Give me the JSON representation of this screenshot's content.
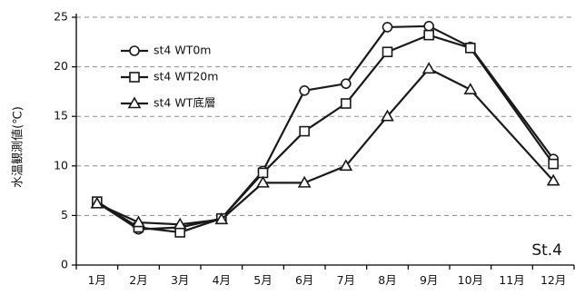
{
  "chart_data": {
    "type": "line",
    "title": "",
    "xlabel": "",
    "ylabel": "水温観測値(℃)",
    "annotation": "St.4",
    "categories": [
      "1月",
      "2月",
      "3月",
      "4月",
      "5月",
      "6月",
      "7月",
      "8月",
      "9月",
      "10月",
      "11月",
      "12月"
    ],
    "ylim": [
      0,
      25
    ],
    "yticks": [
      0,
      5,
      10,
      15,
      20,
      25
    ],
    "grid": "horizontal dashed",
    "legend_position": "top-left",
    "series": [
      {
        "name": "st4 WT0m",
        "marker": "circle",
        "values": [
          6.3,
          3.6,
          3.8,
          4.7,
          9.5,
          17.6,
          18.3,
          24.0,
          24.1,
          22.0,
          null,
          10.7
        ]
      },
      {
        "name": "st4 WT20m",
        "marker": "square",
        "values": [
          6.4,
          3.8,
          3.3,
          4.7,
          9.3,
          13.5,
          16.3,
          21.5,
          23.2,
          21.9,
          null,
          10.2
        ]
      },
      {
        "name": "st4 WT底層",
        "marker": "triangle",
        "values": [
          6.2,
          4.3,
          4.1,
          4.6,
          8.3,
          8.3,
          10.0,
          15.0,
          19.8,
          17.7,
          null,
          8.5
        ]
      }
    ],
    "colors": {
      "line": "#1a1a1a",
      "grid": "#8c8c8c",
      "axis": "#000000"
    }
  }
}
